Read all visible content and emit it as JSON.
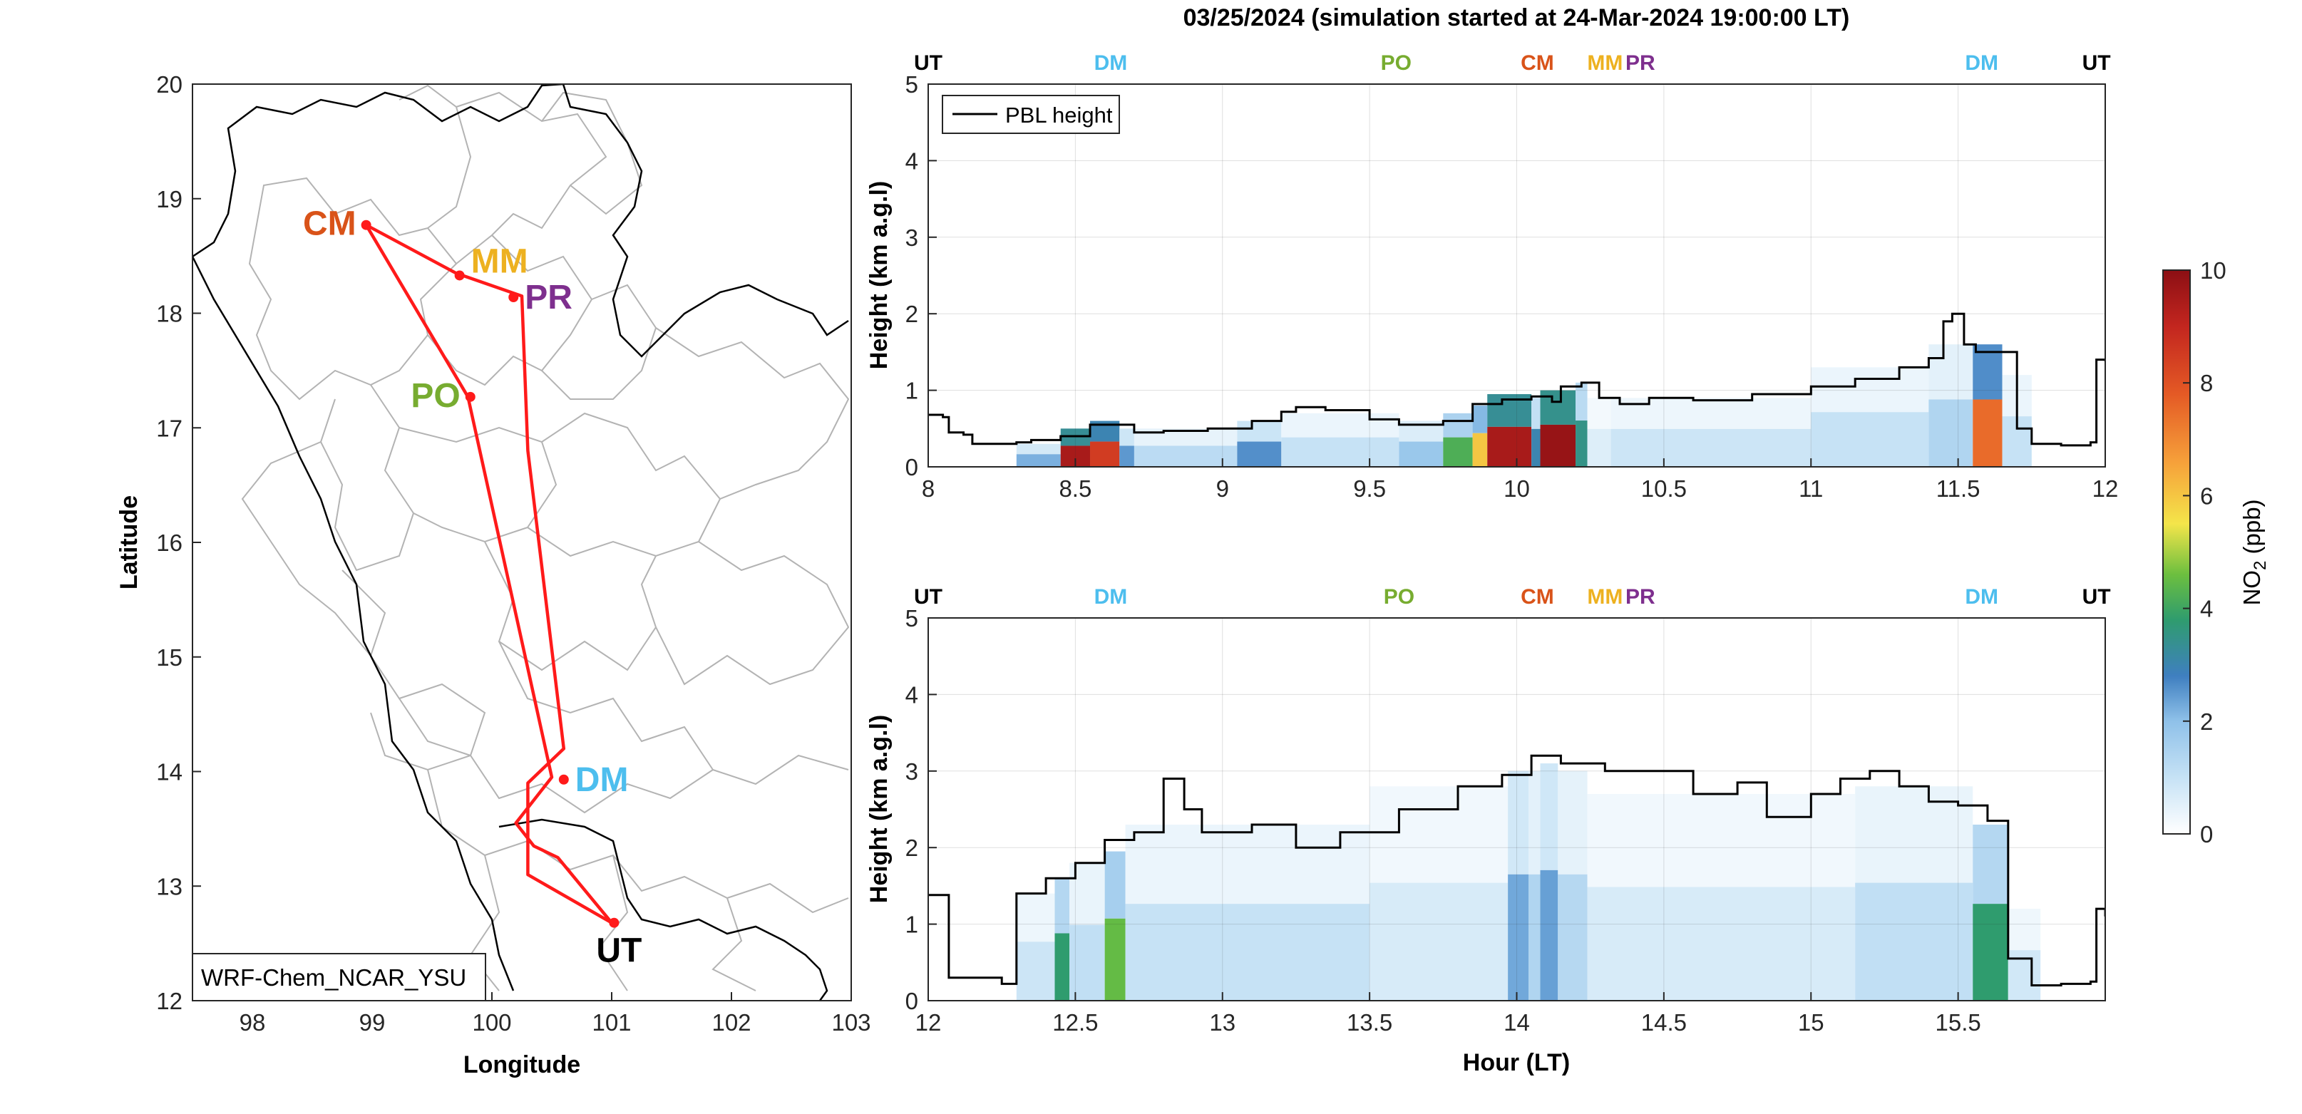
{
  "figure": {
    "title": "03/25/2024 (simulation started at 24-Mar-2024 19:00:00 LT)"
  },
  "chart_data": [
    {
      "type": "scatter",
      "name": "map",
      "xlabel": "Longitude",
      "ylabel": "Latitude",
      "xlim": [
        97.5,
        103
      ],
      "ylim": [
        12,
        20
      ],
      "xticks": [
        98,
        99,
        100,
        101,
        102,
        103
      ],
      "yticks": [
        12,
        13,
        14,
        15,
        16,
        17,
        18,
        19,
        20
      ],
      "model_label": "WRF-Chem_NCAR_YSU",
      "route": [
        [
          101.0,
          12.68
        ],
        [
          100.3,
          13.1
        ],
        [
          100.3,
          13.9
        ],
        [
          100.6,
          14.2
        ],
        [
          100.3,
          16.8
        ],
        [
          100.25,
          18.15
        ],
        [
          99.7,
          18.35
        ],
        [
          98.95,
          18.77
        ],
        [
          99.8,
          17.27
        ],
        [
          100.5,
          13.95
        ],
        [
          100.2,
          13.55
        ],
        [
          100.35,
          13.35
        ],
        [
          100.55,
          13.25
        ],
        [
          101.0,
          12.68
        ]
      ],
      "sites": [
        {
          "code": "CM",
          "lon": 98.95,
          "lat": 18.77,
          "color": "#d95319",
          "anchor": "left"
        },
        {
          "code": "MM",
          "lon": 99.73,
          "lat": 18.33,
          "color": "#edb120",
          "anchor": "right-above"
        },
        {
          "code": "PR",
          "lon": 100.18,
          "lat": 18.14,
          "color": "#7e2f8e",
          "anchor": "right"
        },
        {
          "code": "PO",
          "lon": 99.82,
          "lat": 17.27,
          "color": "#77ac30",
          "anchor": "left"
        },
        {
          "code": "DM",
          "lon": 100.6,
          "lat": 13.93,
          "color": "#4dbeee",
          "anchor": "right"
        },
        {
          "code": "UT",
          "lon": 101.02,
          "lat": 12.68,
          "color": "#000000",
          "anchor": "below"
        }
      ]
    },
    {
      "type": "heatmap",
      "name": "curtain-1",
      "xlabel": "",
      "ylabel": "Height (km a.g.l)",
      "xlim": [
        8,
        12
      ],
      "ylim": [
        0,
        5
      ],
      "xticks": [
        8,
        8.5,
        9,
        9.5,
        10,
        10.5,
        11,
        11.5,
        12
      ],
      "yticks": [
        0,
        1,
        2,
        3,
        4,
        5
      ],
      "legend": [
        "PBL height"
      ],
      "site_labels": [
        {
          "code": "UT",
          "x": 8.0,
          "color": "#000000"
        },
        {
          "code": "DM",
          "x": 8.62,
          "color": "#4dbeee"
        },
        {
          "code": "PO",
          "x": 9.59,
          "color": "#77ac30"
        },
        {
          "code": "CM",
          "x": 10.07,
          "color": "#d95319"
        },
        {
          "code": "MM",
          "x": 10.3,
          "color": "#edb120"
        },
        {
          "code": "PR",
          "x": 10.42,
          "color": "#7e2f8e"
        },
        {
          "code": "DM",
          "x": 11.58,
          "color": "#4dbeee"
        },
        {
          "code": "UT",
          "x": 11.97,
          "color": "#000000"
        }
      ],
      "pbl_height": [
        [
          8.0,
          0.68
        ],
        [
          8.05,
          0.65
        ],
        [
          8.07,
          0.45
        ],
        [
          8.12,
          0.42
        ],
        [
          8.15,
          0.3
        ],
        [
          8.3,
          0.32
        ],
        [
          8.35,
          0.35
        ],
        [
          8.45,
          0.4
        ],
        [
          8.55,
          0.55
        ],
        [
          8.7,
          0.45
        ],
        [
          8.8,
          0.47
        ],
        [
          8.95,
          0.5
        ],
        [
          9.1,
          0.6
        ],
        [
          9.2,
          0.72
        ],
        [
          9.25,
          0.78
        ],
        [
          9.35,
          0.74
        ],
        [
          9.5,
          0.62
        ],
        [
          9.6,
          0.55
        ],
        [
          9.75,
          0.6
        ],
        [
          9.85,
          0.82
        ],
        [
          9.95,
          0.88
        ],
        [
          10.05,
          0.92
        ],
        [
          10.12,
          0.85
        ],
        [
          10.15,
          1.05
        ],
        [
          10.22,
          1.1
        ],
        [
          10.28,
          0.9
        ],
        [
          10.35,
          0.82
        ],
        [
          10.45,
          0.9
        ],
        [
          10.6,
          0.87
        ],
        [
          10.8,
          0.95
        ],
        [
          11.0,
          1.05
        ],
        [
          11.15,
          1.15
        ],
        [
          11.3,
          1.3
        ],
        [
          11.4,
          1.42
        ],
        [
          11.45,
          1.9
        ],
        [
          11.48,
          2.0
        ],
        [
          11.52,
          1.6
        ],
        [
          11.56,
          1.5
        ],
        [
          11.63,
          1.5
        ],
        [
          11.7,
          0.5
        ],
        [
          11.75,
          0.3
        ],
        [
          11.85,
          0.28
        ],
        [
          11.95,
          0.32
        ],
        [
          11.97,
          1.4
        ],
        [
          12.0,
          1.38
        ]
      ],
      "no2_cells": [
        {
          "x0": 8.3,
          "x1": 8.45,
          "top": 0.3,
          "v": 2.2
        },
        {
          "x0": 8.45,
          "x1": 8.55,
          "top": 0.5,
          "v": 9.5
        },
        {
          "x0": 8.55,
          "x1": 8.65,
          "top": 0.6,
          "v": 8.5
        },
        {
          "x0": 8.65,
          "x1": 8.7,
          "top": 0.5,
          "v": 2.5
        },
        {
          "x0": 8.7,
          "x1": 9.05,
          "top": 0.5,
          "v": 1.2
        },
        {
          "x0": 9.05,
          "x1": 9.2,
          "top": 0.6,
          "v": 2.6
        },
        {
          "x0": 9.2,
          "x1": 9.6,
          "top": 0.7,
          "v": 1.0
        },
        {
          "x0": 9.6,
          "x1": 9.75,
          "top": 0.6,
          "v": 1.8
        },
        {
          "x0": 9.75,
          "x1": 9.85,
          "top": 0.7,
          "v": 4.2
        },
        {
          "x0": 9.85,
          "x1": 9.9,
          "top": 0.8,
          "v": 6.0
        },
        {
          "x0": 9.9,
          "x1": 10.05,
          "top": 0.95,
          "v": 9.5
        },
        {
          "x0": 10.05,
          "x1": 10.08,
          "top": 0.9,
          "v": 3.0
        },
        {
          "x0": 10.08,
          "x1": 10.2,
          "top": 1.0,
          "v": 9.8
        },
        {
          "x0": 10.2,
          "x1": 10.24,
          "top": 1.1,
          "v": 3.5
        },
        {
          "x0": 10.24,
          "x1": 10.32,
          "top": 0.9,
          "v": 0.6
        },
        {
          "x0": 10.32,
          "x1": 11.0,
          "top": 0.9,
          "v": 0.9
        },
        {
          "x0": 11.0,
          "x1": 11.4,
          "top": 1.3,
          "v": 1.0
        },
        {
          "x0": 11.4,
          "x1": 11.55,
          "top": 1.6,
          "v": 1.4
        },
        {
          "x0": 11.55,
          "x1": 11.65,
          "top": 1.6,
          "v": 7.5
        },
        {
          "x0": 11.65,
          "x1": 11.75,
          "top": 1.2,
          "v": 1.0
        }
      ]
    },
    {
      "type": "heatmap",
      "name": "curtain-2",
      "xlabel": "Hour (LT)",
      "ylabel": "Height (km a.g.l)",
      "xlim": [
        12,
        16
      ],
      "ylim": [
        0,
        5
      ],
      "xticks": [
        12,
        12.5,
        13,
        13.5,
        14,
        14.5,
        15,
        15.5
      ],
      "yticks": [
        0,
        1,
        2,
        3,
        4,
        5
      ],
      "site_labels": [
        {
          "code": "UT",
          "x": 12.0,
          "color": "#000000"
        },
        {
          "code": "DM",
          "x": 12.62,
          "color": "#4dbeee"
        },
        {
          "code": "PO",
          "x": 13.6,
          "color": "#77ac30"
        },
        {
          "code": "CM",
          "x": 14.07,
          "color": "#d95319"
        },
        {
          "code": "MM",
          "x": 14.3,
          "color": "#edb120"
        },
        {
          "code": "PR",
          "x": 14.42,
          "color": "#7e2f8e"
        },
        {
          "code": "DM",
          "x": 15.58,
          "color": "#4dbeee"
        },
        {
          "code": "UT",
          "x": 15.97,
          "color": "#000000"
        }
      ],
      "pbl_height": [
        [
          12.0,
          1.38
        ],
        [
          12.05,
          1.38
        ],
        [
          12.07,
          0.3
        ],
        [
          12.25,
          0.22
        ],
        [
          12.3,
          1.4
        ],
        [
          12.4,
          1.6
        ],
        [
          12.5,
          1.8
        ],
        [
          12.6,
          2.1
        ],
        [
          12.7,
          2.2
        ],
        [
          12.8,
          2.9
        ],
        [
          12.87,
          2.5
        ],
        [
          12.93,
          2.2
        ],
        [
          13.1,
          2.3
        ],
        [
          13.25,
          2.0
        ],
        [
          13.4,
          2.2
        ],
        [
          13.6,
          2.5
        ],
        [
          13.8,
          2.8
        ],
        [
          13.95,
          2.95
        ],
        [
          14.05,
          3.2
        ],
        [
          14.15,
          3.1
        ],
        [
          14.3,
          3.0
        ],
        [
          14.45,
          3.0
        ],
        [
          14.6,
          2.7
        ],
        [
          14.75,
          2.85
        ],
        [
          14.85,
          2.4
        ],
        [
          15.0,
          2.7
        ],
        [
          15.1,
          2.9
        ],
        [
          15.2,
          3.0
        ],
        [
          15.3,
          2.8
        ],
        [
          15.4,
          2.6
        ],
        [
          15.5,
          2.55
        ],
        [
          15.6,
          2.35
        ],
        [
          15.67,
          0.55
        ],
        [
          15.75,
          0.2
        ],
        [
          15.85,
          0.22
        ],
        [
          15.95,
          0.25
        ],
        [
          15.97,
          1.2
        ],
        [
          16.0,
          1.1
        ]
      ],
      "no2_cells": [
        {
          "x0": 12.3,
          "x1": 12.43,
          "top": 1.4,
          "v": 0.9
        },
        {
          "x0": 12.43,
          "x1": 12.48,
          "top": 1.6,
          "v": 3.8
        },
        {
          "x0": 12.48,
          "x1": 12.6,
          "top": 1.8,
          "v": 1.1
        },
        {
          "x0": 12.6,
          "x1": 12.67,
          "top": 1.95,
          "v": 4.5
        },
        {
          "x0": 12.67,
          "x1": 13.5,
          "top": 2.3,
          "v": 1.0
        },
        {
          "x0": 13.5,
          "x1": 13.97,
          "top": 2.8,
          "v": 0.7
        },
        {
          "x0": 13.97,
          "x1": 14.04,
          "top": 3.0,
          "v": 2.3
        },
        {
          "x0": 14.04,
          "x1": 14.08,
          "top": 3.0,
          "v": 1.4
        },
        {
          "x0": 14.08,
          "x1": 14.14,
          "top": 3.1,
          "v": 2.4
        },
        {
          "x0": 14.14,
          "x1": 14.24,
          "top": 3.0,
          "v": 1.3
        },
        {
          "x0": 14.24,
          "x1": 15.15,
          "top": 2.7,
          "v": 0.7
        },
        {
          "x0": 15.15,
          "x1": 15.55,
          "top": 2.8,
          "v": 1.1
        },
        {
          "x0": 15.55,
          "x1": 15.67,
          "top": 2.3,
          "v": 3.8
        },
        {
          "x0": 15.67,
          "x1": 15.78,
          "top": 1.2,
          "v": 0.8
        }
      ]
    },
    {
      "type": "colorbar",
      "name": "no2-colorbar",
      "label": "NO2 (ppb)",
      "label_main": "NO",
      "label_sub": "2",
      "label_unit": " (ppb)",
      "range": [
        0,
        10
      ],
      "ticks": [
        0,
        2,
        4,
        6,
        8,
        10
      ]
    }
  ],
  "colors": {
    "route": "#ff1a1a",
    "pbl_line": "#000000",
    "boundary": "#b3b3b3",
    "coast": "#000000"
  }
}
